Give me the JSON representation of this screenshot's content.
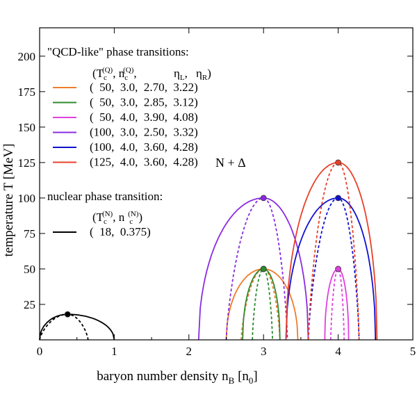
{
  "chart_data": {
    "type": "line",
    "xlabel": "baryon number density n",
    "xlabel_sub": "B",
    "xlabel_unit_open": " [n",
    "xlabel_unit_sub": "0",
    "xlabel_unit_close": "]",
    "ylabel": "temperature T [MeV]",
    "xlim": [
      0,
      5
    ],
    "ylim": [
      0,
      220
    ],
    "xticks": [
      0,
      1,
      2,
      3,
      4,
      5
    ],
    "yticks": [
      25,
      50,
      75,
      100,
      125,
      150,
      175,
      200
    ],
    "legend_qcd_title": "\"QCD-like\" phase transitions:",
    "legend_qcd_header": {
      "open": "(T",
      "sub1": "c",
      "sup1": "(Q)",
      "mid": ", n",
      "sub2": "c",
      "sup2": "(Q)",
      "etaL": "η",
      "etaL_sub": "L",
      "etaR": "η",
      "etaR_sub": "R",
      "close": ")"
    },
    "legend_nuc_title": "nuclear phase transition:",
    "legend_nuc_header": {
      "open": "(T",
      "sub1": "c",
      "sup1": "(N)",
      "mid": ", n",
      "sub2": "c",
      "sup2": "(N)",
      "close": ")"
    },
    "n_delta_label": "N + Δ",
    "n_delta_color": "#e8402a",
    "series": [
      {
        "label": "(  50,  3.0,  2.70,  3.22)",
        "color": "#f07b2a",
        "Tc": 50,
        "nc": 3.0,
        "spinodal_L": 2.7,
        "spinodal_R": 3.22,
        "binodal_L": 2.5,
        "binodal_R": 3.46
      },
      {
        "label": "(  50,  3.0,  2.85,  3.12)",
        "color": "#2e8b2e",
        "Tc": 50,
        "nc": 3.0,
        "spinodal_L": 2.85,
        "spinodal_R": 3.12,
        "binodal_L": 2.72,
        "binodal_R": 3.22
      },
      {
        "label": "(  50,  4.0,  3.90,  4.08)",
        "color": "#e040e0",
        "Tc": 50,
        "nc": 4.0,
        "spinodal_L": 3.9,
        "spinodal_R": 4.08,
        "binodal_L": 3.82,
        "binodal_R": 4.14
      },
      {
        "label": "(100,  3.0,  2.50,  3.32)",
        "color": "#8a2be2",
        "Tc": 100,
        "nc": 3.0,
        "spinodal_L": 2.5,
        "spinodal_R": 3.32,
        "binodal_L": 2.13,
        "binodal_R": 3.6
      },
      {
        "label": "(100,  4.0,  3.60,  4.28)",
        "color": "#1010d0",
        "Tc": 100,
        "nc": 4.0,
        "spinodal_L": 3.6,
        "spinodal_R": 4.28,
        "binodal_L": 3.3,
        "binodal_R": 4.5
      },
      {
        "label": "(125,  4.0,  3.60,  4.28)",
        "color": "#e8402a",
        "Tc": 125,
        "nc": 4.0,
        "spinodal_L": 3.6,
        "spinodal_R": 4.28,
        "binodal_L": 3.3,
        "binodal_R": 4.52
      },
      {
        "label": "(  18,  0.375)",
        "color": "#000000",
        "Tc": 18,
        "nc": 0.375,
        "spinodal_L": 0.0,
        "spinodal_R": 0.65,
        "binodal_L": 0.0,
        "binodal_R": 1.0,
        "group": "nuclear"
      }
    ]
  }
}
